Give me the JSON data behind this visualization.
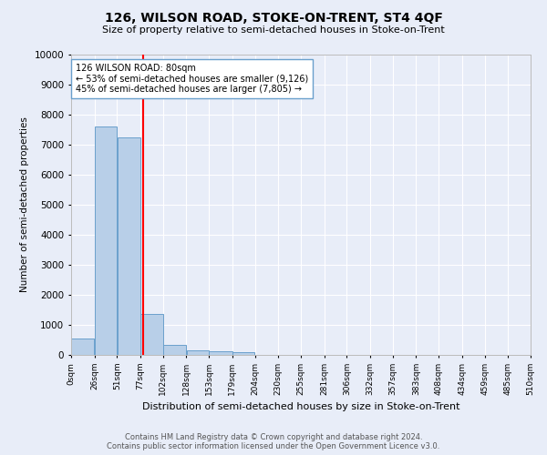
{
  "title": "126, WILSON ROAD, STOKE-ON-TRENT, ST4 4QF",
  "subtitle": "Size of property relative to semi-detached houses in Stoke-on-Trent",
  "xlabel": "Distribution of semi-detached houses by size in Stoke-on-Trent",
  "ylabel": "Number of semi-detached properties",
  "footer_line1": "Contains HM Land Registry data © Crown copyright and database right 2024.",
  "footer_line2": "Contains public sector information licensed under the Open Government Licence v3.0.",
  "bin_labels": [
    "0sqm",
    "26sqm",
    "51sqm",
    "77sqm",
    "102sqm",
    "128sqm",
    "153sqm",
    "179sqm",
    "204sqm",
    "230sqm",
    "255sqm",
    "281sqm",
    "306sqm",
    "332sqm",
    "357sqm",
    "383sqm",
    "408sqm",
    "434sqm",
    "459sqm",
    "485sqm",
    "510sqm"
  ],
  "bar_values": [
    550,
    7600,
    7250,
    1350,
    340,
    160,
    120,
    90,
    0,
    0,
    0,
    0,
    0,
    0,
    0,
    0,
    0,
    0,
    0,
    0
  ],
  "bar_color": "#b8cfe8",
  "bar_edge_color": "#6aa0cc",
  "background_color": "#e8edf8",
  "grid_color": "#ffffff",
  "vline_x": 80,
  "vline_color": "red",
  "annotation_text": "126 WILSON ROAD: 80sqm\n← 53% of semi-detached houses are smaller (9,126)\n45% of semi-detached houses are larger (7,805) →",
  "annotation_box_color": "white",
  "annotation_box_edge": "#6aa0cc",
  "ylim": [
    0,
    10000
  ],
  "bin_edges_sqm": [
    0,
    26,
    51,
    77,
    102,
    128,
    153,
    179,
    204,
    230,
    255,
    281,
    306,
    332,
    357,
    383,
    408,
    434,
    459,
    485,
    510
  ]
}
